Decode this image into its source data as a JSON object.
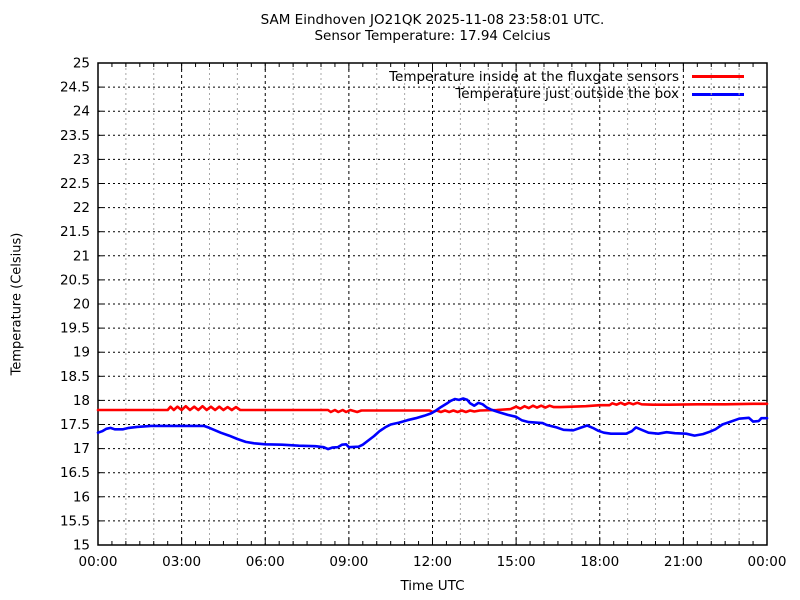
{
  "chart_data": {
    "type": "line",
    "title": "SAM Eindhoven JO21QK 2025-11-08 23:58:01 UTC.",
    "subtitle": "Sensor Temperature: 17.94 Celcius",
    "xlabel": "Time UTC",
    "ylabel": "Temperature (Celsius)",
    "x_range_hours": [
      0,
      24
    ],
    "ylim": [
      15,
      25
    ],
    "legend_position": "top-right-inside",
    "grid": {
      "horizontal": "dashed black every 0.5",
      "vertical_major": "dashed black every 3h",
      "vertical_minor": "dashed gray every 1h"
    },
    "x_ticks": [
      {
        "h": 0,
        "label": "00:00"
      },
      {
        "h": 3,
        "label": "03:00"
      },
      {
        "h": 6,
        "label": "06:00"
      },
      {
        "h": 9,
        "label": "09:00"
      },
      {
        "h": 12,
        "label": "12:00"
      },
      {
        "h": 15,
        "label": "15:00"
      },
      {
        "h": 18,
        "label": "18:00"
      },
      {
        "h": 21,
        "label": "21:00"
      },
      {
        "h": 24,
        "label": "00:00"
      }
    ],
    "y_ticks": [
      {
        "v": 25,
        "label": "25"
      },
      {
        "v": 24.5,
        "label": "24.5"
      },
      {
        "v": 24,
        "label": "24"
      },
      {
        "v": 23.5,
        "label": "23.5"
      },
      {
        "v": 23,
        "label": "23"
      },
      {
        "v": 22.5,
        "label": "22.5"
      },
      {
        "v": 22,
        "label": "22"
      },
      {
        "v": 21.5,
        "label": "21.5"
      },
      {
        "v": 21,
        "label": "21"
      },
      {
        "v": 20.5,
        "label": "20.5"
      },
      {
        "v": 20,
        "label": "20"
      },
      {
        "v": 19.5,
        "label": "19.5"
      },
      {
        "v": 19,
        "label": "19"
      },
      {
        "v": 18.5,
        "label": "18.5"
      },
      {
        "v": 18,
        "label": "18"
      },
      {
        "v": 17.5,
        "label": "17.5"
      },
      {
        "v": 17,
        "label": "17"
      },
      {
        "v": 16.5,
        "label": "16.5"
      },
      {
        "v": 16,
        "label": "16"
      },
      {
        "v": 15.5,
        "label": "15.5"
      },
      {
        "v": 15,
        "label": "15"
      }
    ],
    "series": [
      {
        "name": "Temperature inside at the fluxgate sensors",
        "color": "#ff0000",
        "points": [
          [
            0,
            17.8
          ],
          [
            2.5,
            17.8
          ],
          [
            2.6,
            17.87
          ],
          [
            2.72,
            17.8
          ],
          [
            2.85,
            17.87
          ],
          [
            3.0,
            17.8
          ],
          [
            3.15,
            17.88
          ],
          [
            3.3,
            17.8
          ],
          [
            3.45,
            17.87
          ],
          [
            3.6,
            17.8
          ],
          [
            3.75,
            17.88
          ],
          [
            3.9,
            17.8
          ],
          [
            4.05,
            17.87
          ],
          [
            4.2,
            17.8
          ],
          [
            4.35,
            17.87
          ],
          [
            4.5,
            17.8
          ],
          [
            4.65,
            17.86
          ],
          [
            4.8,
            17.8
          ],
          [
            4.95,
            17.86
          ],
          [
            5.1,
            17.8
          ],
          [
            5.3,
            17.8
          ],
          [
            8.25,
            17.8
          ],
          [
            8.35,
            17.76
          ],
          [
            8.5,
            17.8
          ],
          [
            8.62,
            17.76
          ],
          [
            8.78,
            17.8
          ],
          [
            8.9,
            17.76
          ],
          [
            9.05,
            17.8
          ],
          [
            9.3,
            17.76
          ],
          [
            9.45,
            17.79
          ],
          [
            11.9,
            17.79
          ],
          [
            12.0,
            17.76
          ],
          [
            12.15,
            17.79
          ],
          [
            12.3,
            17.76
          ],
          [
            12.45,
            17.79
          ],
          [
            12.6,
            17.76
          ],
          [
            12.75,
            17.79
          ],
          [
            12.9,
            17.76
          ],
          [
            13.05,
            17.79
          ],
          [
            13.2,
            17.76
          ],
          [
            13.35,
            17.79
          ],
          [
            13.5,
            17.77
          ],
          [
            13.7,
            17.79
          ],
          [
            14.3,
            17.8
          ],
          [
            14.8,
            17.82
          ],
          [
            15.0,
            17.87
          ],
          [
            15.15,
            17.83
          ],
          [
            15.3,
            17.88
          ],
          [
            15.45,
            17.84
          ],
          [
            15.6,
            17.89
          ],
          [
            15.75,
            17.85
          ],
          [
            15.9,
            17.89
          ],
          [
            16.05,
            17.85
          ],
          [
            16.2,
            17.89
          ],
          [
            16.35,
            17.86
          ],
          [
            16.6,
            17.86
          ],
          [
            17.0,
            17.87
          ],
          [
            17.5,
            17.88
          ],
          [
            18.0,
            17.9
          ],
          [
            18.35,
            17.9
          ],
          [
            18.45,
            17.94
          ],
          [
            18.6,
            17.91
          ],
          [
            18.75,
            17.95
          ],
          [
            18.9,
            17.91
          ],
          [
            19.05,
            17.95
          ],
          [
            19.2,
            17.92
          ],
          [
            19.35,
            17.95
          ],
          [
            19.5,
            17.92
          ],
          [
            19.9,
            17.91
          ],
          [
            20.5,
            17.91
          ],
          [
            21.5,
            17.92
          ],
          [
            22.5,
            17.92
          ],
          [
            23.5,
            17.93
          ],
          [
            24,
            17.93
          ]
        ]
      },
      {
        "name": "Temperature just outside the box",
        "color": "#0000ff",
        "points": [
          [
            0,
            17.33
          ],
          [
            0.15,
            17.36
          ],
          [
            0.3,
            17.41
          ],
          [
            0.45,
            17.43
          ],
          [
            0.6,
            17.4
          ],
          [
            0.9,
            17.4
          ],
          [
            1.1,
            17.43
          ],
          [
            1.4,
            17.45
          ],
          [
            1.9,
            17.47
          ],
          [
            3.8,
            17.47
          ],
          [
            4.0,
            17.43
          ],
          [
            4.2,
            17.38
          ],
          [
            4.4,
            17.33
          ],
          [
            4.7,
            17.27
          ],
          [
            5.0,
            17.2
          ],
          [
            5.3,
            17.14
          ],
          [
            5.6,
            17.11
          ],
          [
            6.0,
            17.09
          ],
          [
            6.6,
            17.08
          ],
          [
            7.2,
            17.06
          ],
          [
            7.8,
            17.05
          ],
          [
            8.1,
            17.03
          ],
          [
            8.25,
            16.99
          ],
          [
            8.4,
            17.02
          ],
          [
            8.6,
            17.03
          ],
          [
            8.75,
            17.08
          ],
          [
            8.9,
            17.09
          ],
          [
            9.0,
            17.03
          ],
          [
            9.35,
            17.04
          ],
          [
            9.5,
            17.08
          ],
          [
            9.7,
            17.17
          ],
          [
            9.9,
            17.26
          ],
          [
            10.1,
            17.36
          ],
          [
            10.3,
            17.44
          ],
          [
            10.5,
            17.5
          ],
          [
            10.8,
            17.54
          ],
          [
            11.1,
            17.59
          ],
          [
            11.4,
            17.63
          ],
          [
            11.7,
            17.68
          ],
          [
            11.95,
            17.73
          ],
          [
            12.1,
            17.78
          ],
          [
            12.3,
            17.86
          ],
          [
            12.5,
            17.93
          ],
          [
            12.65,
            17.99
          ],
          [
            12.8,
            18.03
          ],
          [
            12.95,
            18.01
          ],
          [
            13.1,
            18.04
          ],
          [
            13.25,
            18.01
          ],
          [
            13.35,
            17.94
          ],
          [
            13.5,
            17.89
          ],
          [
            13.65,
            17.95
          ],
          [
            13.8,
            17.92
          ],
          [
            13.95,
            17.85
          ],
          [
            14.1,
            17.81
          ],
          [
            14.4,
            17.75
          ],
          [
            14.7,
            17.7
          ],
          [
            15.0,
            17.66
          ],
          [
            15.2,
            17.59
          ],
          [
            15.45,
            17.55
          ],
          [
            15.95,
            17.53
          ],
          [
            16.1,
            17.49
          ],
          [
            16.45,
            17.44
          ],
          [
            16.7,
            17.39
          ],
          [
            17.05,
            17.38
          ],
          [
            17.3,
            17.43
          ],
          [
            17.55,
            17.48
          ],
          [
            17.75,
            17.43
          ],
          [
            17.95,
            17.37
          ],
          [
            18.15,
            17.33
          ],
          [
            18.4,
            17.31
          ],
          [
            18.95,
            17.31
          ],
          [
            19.15,
            17.36
          ],
          [
            19.3,
            17.44
          ],
          [
            19.5,
            17.39
          ],
          [
            19.75,
            17.33
          ],
          [
            20.1,
            17.31
          ],
          [
            20.4,
            17.34
          ],
          [
            20.7,
            17.32
          ],
          [
            21.1,
            17.31
          ],
          [
            21.4,
            17.27
          ],
          [
            21.7,
            17.3
          ],
          [
            21.95,
            17.35
          ],
          [
            22.15,
            17.4
          ],
          [
            22.4,
            17.5
          ],
          [
            22.7,
            17.56
          ],
          [
            23.0,
            17.62
          ],
          [
            23.35,
            17.64
          ],
          [
            23.5,
            17.56
          ],
          [
            23.7,
            17.57
          ],
          [
            23.8,
            17.63
          ],
          [
            24,
            17.63
          ]
        ]
      }
    ]
  }
}
